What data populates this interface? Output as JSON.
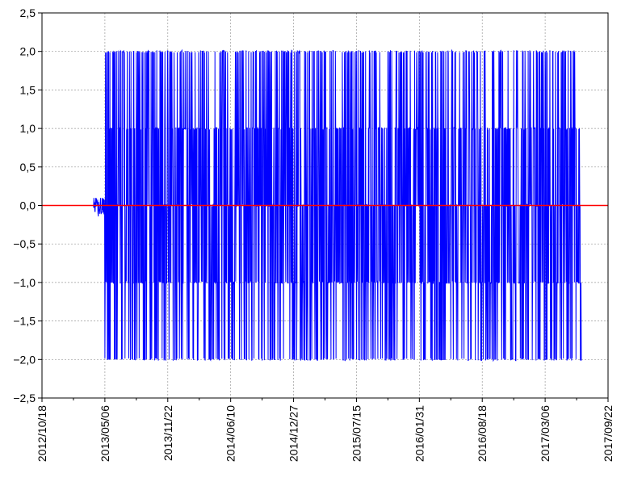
{
  "chart_data": {
    "type": "line",
    "title": "",
    "xlabel": "",
    "ylabel": "",
    "x_axis_type": "date",
    "xlim": [
      "2012-10-18",
      "2017-09-22"
    ],
    "ylim": [
      -2.5,
      2.5
    ],
    "x_ticks": [
      {
        "date": "2012-10-18",
        "label": "2012/10/18"
      },
      {
        "date": "2013-05-06",
        "label": "2013/05/06"
      },
      {
        "date": "2013-11-22",
        "label": "2013/11/22"
      },
      {
        "date": "2014-06-10",
        "label": "2014/06/10"
      },
      {
        "date": "2014-12-27",
        "label": "2014/12/27"
      },
      {
        "date": "2015-07-15",
        "label": "2015/07/15"
      },
      {
        "date": "2016-01-31",
        "label": "2016/01/31"
      },
      {
        "date": "2016-08-18",
        "label": "2016/08/18"
      },
      {
        "date": "2017-03-06",
        "label": "2017/03/06"
      },
      {
        "date": "2017-09-22",
        "label": "2017/09/22"
      }
    ],
    "y_ticks": [
      {
        "value": 2.5,
        "label": "2,5"
      },
      {
        "value": 2.0,
        "label": "2,0"
      },
      {
        "value": 1.5,
        "label": "1,5"
      },
      {
        "value": 1.0,
        "label": "1,0"
      },
      {
        "value": 0.5,
        "label": "0,5"
      },
      {
        "value": 0.0,
        "label": "0,0"
      },
      {
        "value": -0.5,
        "label": "−0,5"
      },
      {
        "value": -1.0,
        "label": "−1,0"
      },
      {
        "value": -1.5,
        "label": "−1,5"
      },
      {
        "value": -2.0,
        "label": "−2,0"
      },
      {
        "value": -2.5,
        "label": "−2,5"
      }
    ],
    "grid": true,
    "legend": "none",
    "series": [
      {
        "color": "#0000ff",
        "x_start": "2013-03-31",
        "x_end": "2017-06-29",
        "values_observed": [
          -2,
          -1,
          0,
          1,
          2
        ],
        "description_values": "Daily values oscillating between −2 and 2; small values near 0 from 2013-03-31 to 2013-05-06, then dense oscillation until 2017-06-29."
      },
      {
        "color": "#ff0000",
        "x_start": "2012-10-18",
        "x_end": "2017-09-22",
        "values": [
          0,
          0
        ]
      }
    ]
  }
}
